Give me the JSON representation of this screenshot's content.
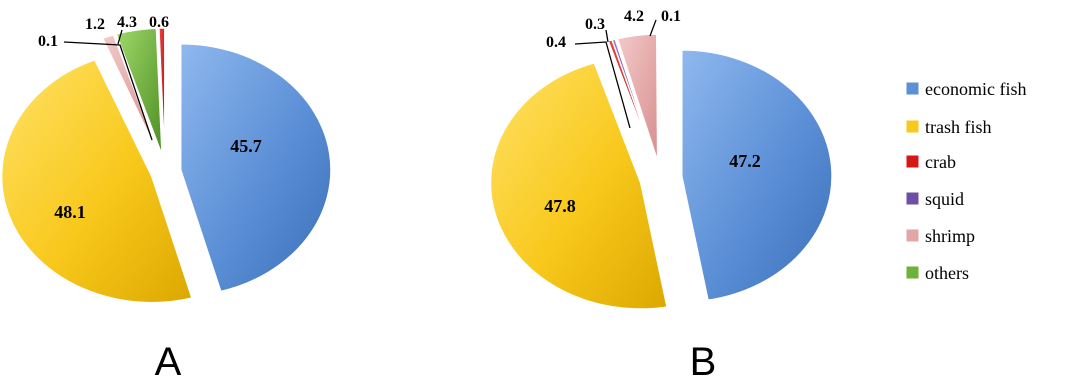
{
  "colors": {
    "economic fish": "#5b8fd6",
    "trash fish": "#f8c81c",
    "crab": "#d41818",
    "squid": "#6e4fa6",
    "shrimp": "#e3a6a6",
    "others": "#6fb23a"
  },
  "legend": {
    "items": [
      {
        "label": "economic fish",
        "color": "#5b8fd6"
      },
      {
        "label": "trash fish",
        "color": "#f8c81c"
      },
      {
        "label": "crab",
        "color": "#d41818"
      },
      {
        "label": "squid",
        "color": "#6e4fa6"
      },
      {
        "label": "shrimp",
        "color": "#e3a6a6"
      },
      {
        "label": "others",
        "color": "#6fb23a"
      }
    ]
  },
  "chart_data": [
    {
      "type": "pie",
      "panel": "A",
      "categories": [
        "economic fish",
        "trash fish",
        "squid",
        "shrimp",
        "others",
        "crab"
      ],
      "values": [
        45.7,
        48.1,
        0.1,
        1.2,
        4.3,
        0.6
      ],
      "labels": [
        "45.7",
        "48.1",
        "0.1",
        "1.2",
        "4.3",
        "0.6"
      ],
      "exploded": true
    },
    {
      "type": "pie",
      "panel": "B",
      "categories": [
        "economic fish",
        "trash fish",
        "crab",
        "squid",
        "shrimp",
        "others"
      ],
      "values": [
        47.2,
        47.8,
        0.4,
        0.3,
        4.2,
        0.1
      ],
      "labels": [
        "47.2",
        "47.8",
        "0.4",
        "0.3",
        "4.2",
        "0.1"
      ],
      "exploded": true
    }
  ]
}
